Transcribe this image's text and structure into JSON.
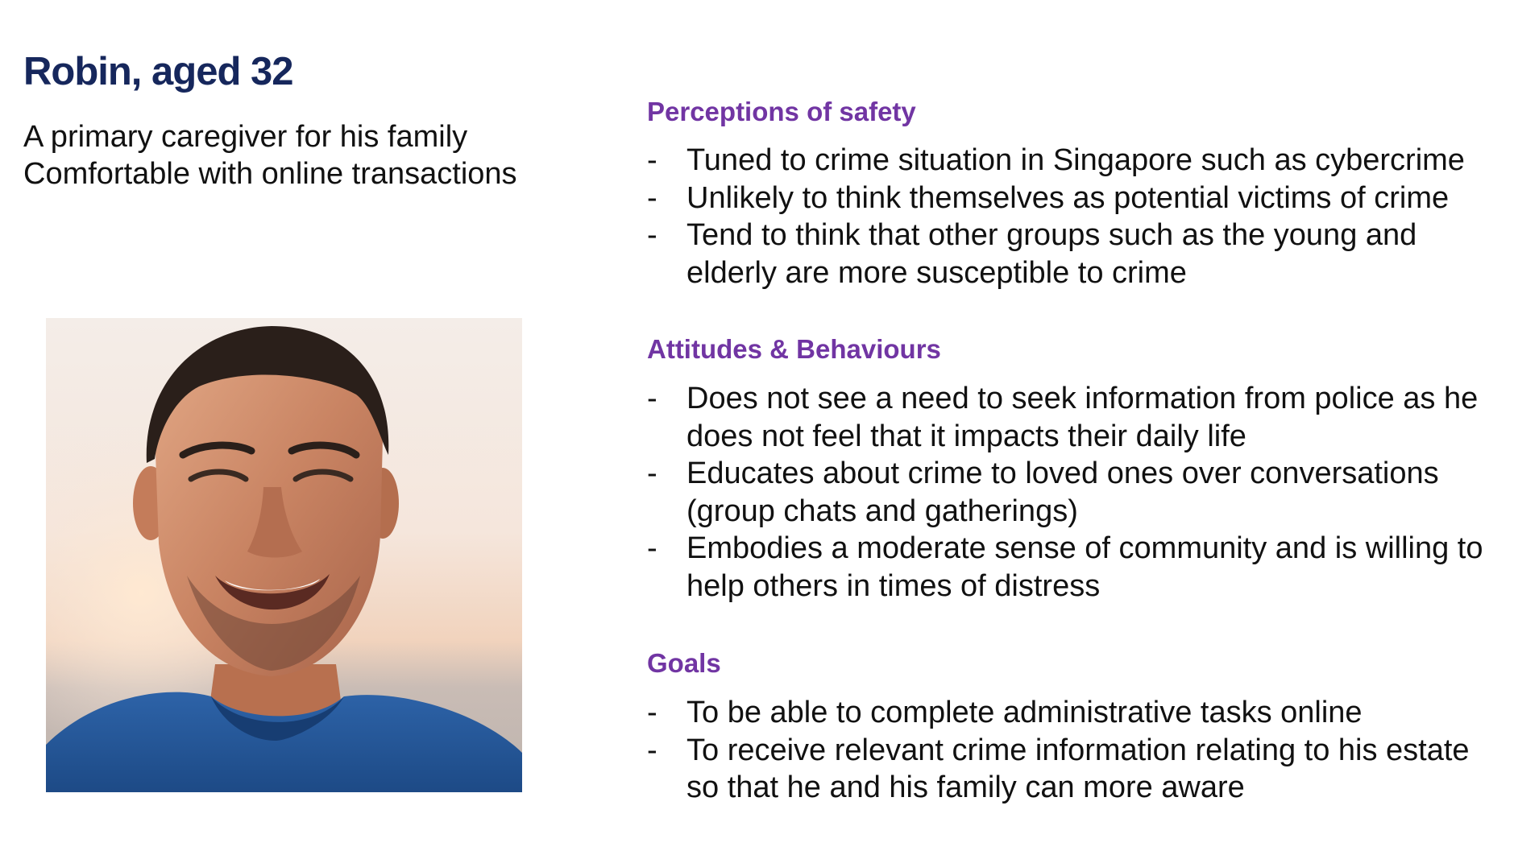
{
  "persona": {
    "name": "Robin, aged 32",
    "description": [
      "A primary caregiver for his family",
      "Comfortable with online transactions"
    ]
  },
  "sections": [
    {
      "heading": "Perceptions of safety",
      "items": [
        "Tuned to crime situation in Singapore such as cybercrime",
        "Unlikely to think themselves as potential victims of crime",
        "Tend to think that other groups such as the young and elderly are more susceptible to crime"
      ]
    },
    {
      "heading": "Attitudes & Behaviours",
      "items": [
        "Does not see a need to seek information from police as he does not feel that it impacts their daily life",
        "Educates about crime to loved ones over conversations (group chats and gatherings)",
        "Embodies a moderate sense of community and is willing to help others in times of distress"
      ]
    },
    {
      "heading": "Goals",
      "items": [
        "To be able to complete administrative tasks online",
        "To receive relevant crime information relating to his estate so that he and his family can more aware"
      ]
    }
  ],
  "bullet_marker": "-",
  "colors": {
    "name": "#16275c",
    "heading": "#7135a3",
    "body": "#111111"
  }
}
